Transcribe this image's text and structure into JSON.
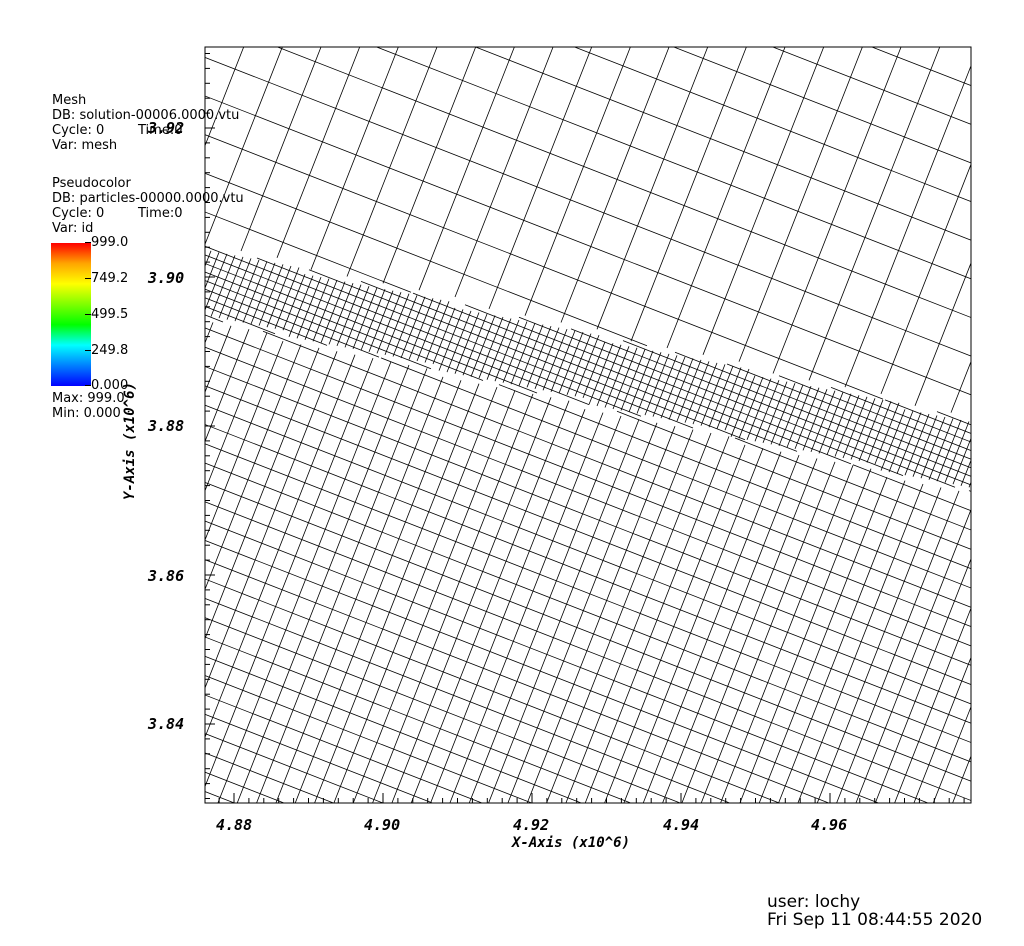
{
  "mesh_legend": {
    "plot_type": "Mesh",
    "db": "DB: solution-00006.0000.vtu",
    "cycle": "Cycle: 0",
    "time": "Time:0",
    "var": "Var: mesh"
  },
  "pseudocolor_legend": {
    "plot_type": "Pseudocolor",
    "db": "DB: particles-00000.0000.vtu",
    "cycle": "Cycle: 0",
    "time": "Time:0",
    "var": "Var: id",
    "colorbar_ticks": [
      "999.0",
      "749.2",
      "499.5",
      "249.8",
      "0.000"
    ],
    "colormap": [
      "#ff0000",
      "#ffa500",
      "#ffff00",
      "#7fff00",
      "#00ff00",
      "#00ffff",
      "#0080ff",
      "#0000ff"
    ],
    "max": "Max:  999.0",
    "min": "Min:  0.000"
  },
  "axes": {
    "x_title": "X-Axis (x10^6)",
    "y_title": "Y-Axis (x10^6)",
    "x_ticks": [
      "4.88",
      "4.90",
      "4.92",
      "4.94",
      "4.96"
    ],
    "y_ticks": [
      "3.92",
      "3.90",
      "3.88",
      "3.86",
      "3.84"
    ]
  },
  "mesh_style": {
    "line_color": "#000000",
    "background": "#ffffff"
  },
  "footer": {
    "user": "user: lochy",
    "date": "Fri Sep 11 08:44:55 2020"
  }
}
